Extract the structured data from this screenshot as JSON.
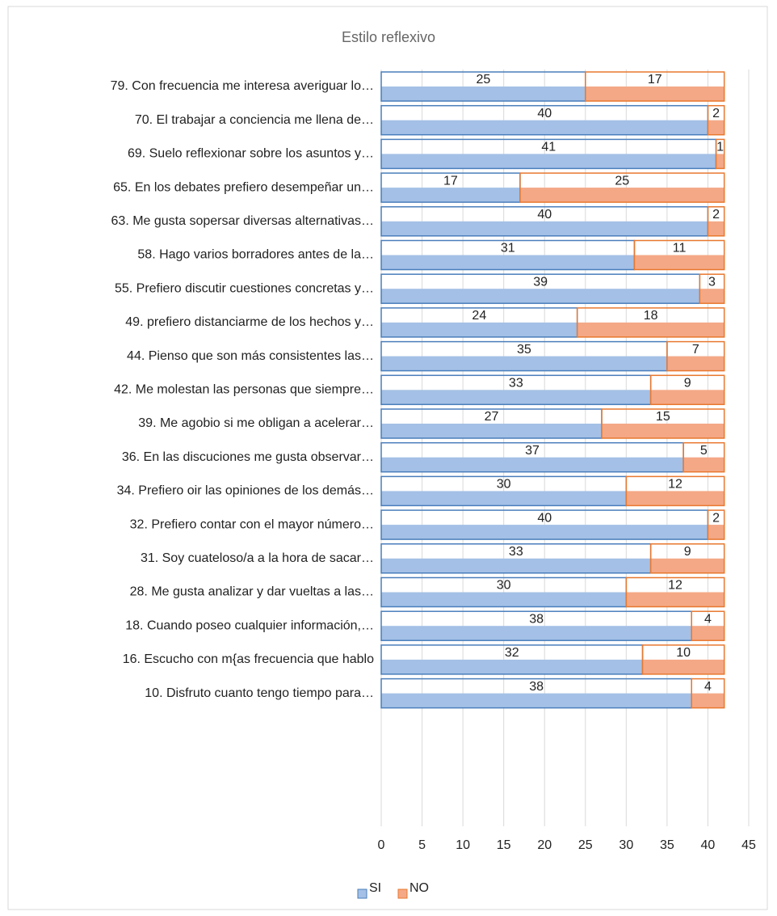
{
  "chart_data": {
    "type": "bar",
    "orientation": "horizontal",
    "stacked": true,
    "title": "Estilo reflexivo",
    "categories": [
      "79. Con frecuencia me interesa averiguar lo…",
      "70. El trabajar a conciencia me llena de…",
      "69. Suelo reflexionar sobre los asuntos y…",
      "65. En los debates prefiero desempeñar un…",
      "63. Me gusta sopersar diversas alternativas…",
      "58. Hago varios borradores antes de la…",
      "55. Prefiero discutir cuestiones concretas y…",
      "49. prefiero distanciarme de los hechos y…",
      "44. Pienso que son más consistentes las…",
      "42. Me molestan las personas que siempre…",
      "39. Me agobio si me obligan a acelerar…",
      "36. En las discuciones me gusta observar…",
      "34. Prefiero oir las opiniones de los demás…",
      "32. Prefiero contar con el mayor número…",
      "31. Soy cuateloso/a a la hora de sacar…",
      "28. Me gusta analizar y dar vueltas a las…",
      "18. Cuando poseo cualquier información,…",
      "16. Escucho con m{as frecuencia que hablo",
      "10. Disfruto cuanto tengo tiempo para…"
    ],
    "series": [
      {
        "name": "SI",
        "color": "#4a7ebb",
        "fill": "#a4c0e6",
        "values": [
          25,
          40,
          41,
          17,
          40,
          31,
          39,
          24,
          35,
          33,
          27,
          37,
          30,
          40,
          33,
          30,
          38,
          32,
          38
        ]
      },
      {
        "name": "NO",
        "color": "#e8782f",
        "fill": "#f4a886",
        "values": [
          17,
          2,
          1,
          25,
          2,
          11,
          3,
          18,
          7,
          9,
          15,
          5,
          12,
          2,
          9,
          12,
          4,
          10,
          4
        ]
      }
    ],
    "xlim": [
      0,
      45
    ],
    "xticks": [
      0,
      5,
      10,
      15,
      20,
      25,
      30,
      35,
      40,
      45
    ],
    "grid": true,
    "legend": "bottom"
  }
}
